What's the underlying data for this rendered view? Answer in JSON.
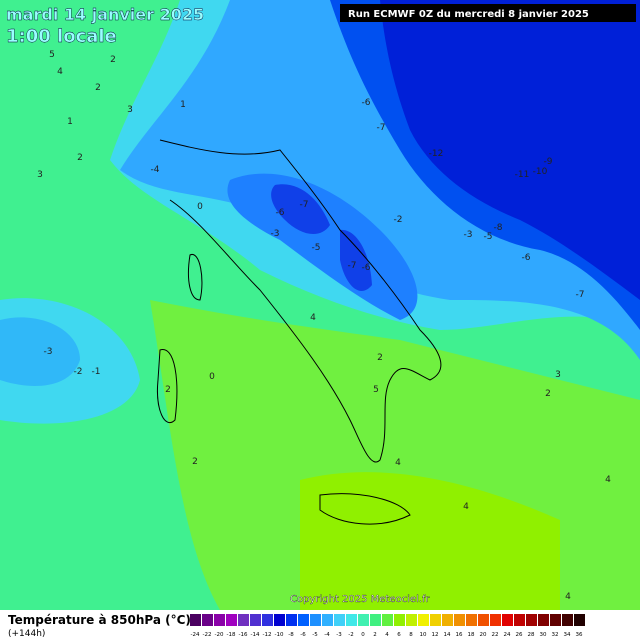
{
  "header": {
    "title": "mardi 14 janvier 2025",
    "time": "1:00 locale",
    "run": "Run ECMWF 0Z du mercredi 8 janvier 2025"
  },
  "footer": {
    "copyright": "Copyright 2025 Meteociel.fr",
    "legend_title": "Température à 850hPa (°C)",
    "lead": "(+144h)"
  },
  "scale": {
    "labels": [
      "-24",
      "-22",
      "-20",
      "-18",
      "-16",
      "-14",
      "-12",
      "-10",
      "-8",
      "-6",
      "-5",
      "-4",
      "-3",
      "-2",
      "0",
      "2",
      "4",
      "6",
      "8",
      "10",
      "12",
      "14",
      "16",
      "18",
      "20",
      "22",
      "24",
      "26",
      "28",
      "30",
      "32",
      "34",
      "36"
    ],
    "colors": [
      "#4b0060",
      "#6a0088",
      "#8a00a8",
      "#a000c0",
      "#7030c0",
      "#5030d0",
      "#3030e0",
      "#0000d0",
      "#0030f0",
      "#0060ff",
      "#1e90ff",
      "#30b0ff",
      "#40d0f8",
      "#40e8e8",
      "#40f0b0",
      "#40f080",
      "#60f040",
      "#90f000",
      "#c0f000",
      "#f0f000",
      "#f0d000",
      "#f0b000",
      "#f09000",
      "#f07000",
      "#f05000",
      "#f03000",
      "#e00000",
      "#c00000",
      "#a00000",
      "#800000",
      "#600000",
      "#400000",
      "#200000"
    ]
  },
  "contours": [
    "5",
    "4",
    "2",
    "2",
    "3",
    "1",
    "2",
    "3",
    "-4",
    "0",
    "1",
    "-6",
    "-7",
    "-3",
    "-5",
    "-7",
    "-6",
    "-2",
    "-6",
    "-7",
    "-12",
    "-9",
    "-10",
    "-11",
    "-3",
    "-5",
    "-8",
    "-6",
    "-7",
    "-3",
    "-2",
    "-1",
    "0",
    "2",
    "2",
    "4",
    "2",
    "5",
    "4",
    "4",
    "2",
    "3",
    "4",
    "4"
  ]
}
